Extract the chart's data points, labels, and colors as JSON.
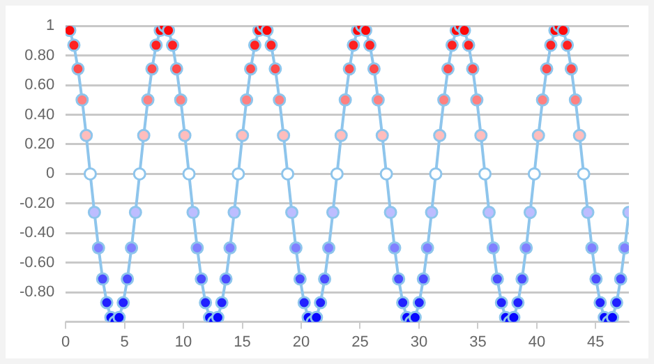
{
  "chart_data": {
    "type": "line",
    "marker": "circle",
    "grid": "y",
    "xlim": [
      0,
      47.82
    ],
    "ylim": [
      -1,
      1
    ],
    "xticks": [
      0,
      5,
      10,
      15,
      20,
      25,
      30,
      35,
      40,
      45
    ],
    "yticks": [
      1,
      {
        "value": 0.8,
        "label": "0.80"
      },
      {
        "value": 0.6,
        "label": "0.60"
      },
      {
        "value": 0.4,
        "label": "0.40"
      },
      {
        "value": 0.2,
        "label": "0.20"
      },
      0,
      {
        "value": -0.2,
        "label": "-0.20"
      },
      {
        "value": -0.4,
        "label": "-0.40"
      },
      {
        "value": -0.6,
        "label": "-0.60"
      },
      {
        "value": -0.8,
        "label": "-0.80"
      },
      {
        "value": -1,
        "label": null
      }
    ],
    "series": [
      {
        "color": "#8ec5ec",
        "x": [
          0,
          0.35,
          0.7,
          1.05,
          1.4,
          1.75,
          2.09,
          2.44,
          2.79,
          3.14,
          3.49,
          3.84,
          4.19,
          4.54,
          4.89,
          5.24,
          5.59,
          5.93,
          6.28,
          6.63,
          6.98,
          7.33,
          7.68,
          8.03,
          8.38,
          8.73,
          9.08,
          9.42,
          9.77,
          10.12,
          10.47,
          10.82,
          11.17,
          11.52,
          11.87,
          12.22,
          12.57,
          12.92,
          13.26,
          13.61,
          13.96,
          14.31,
          14.66,
          15.01,
          15.36,
          15.71,
          16.06,
          16.41,
          16.76,
          17.1,
          17.45,
          17.8,
          18.15,
          18.5,
          18.85,
          19.2,
          19.55,
          19.9,
          20.25,
          20.59,
          20.94,
          21.29,
          21.64,
          21.99,
          22.34,
          22.69,
          23.04,
          23.39,
          23.74,
          24.09,
          24.43,
          24.78,
          25.13,
          25.48,
          25.83,
          26.18,
          26.53,
          26.88,
          27.23,
          27.58,
          27.93,
          28.27,
          28.62,
          28.97,
          29.32,
          29.67,
          30.02,
          30.37,
          30.72,
          31.07,
          31.42,
          31.76,
          32.11,
          32.46,
          32.81,
          33.16,
          33.51,
          33.86,
          34.21,
          34.56,
          34.91,
          35.26,
          35.6,
          35.95,
          36.3,
          36.65,
          37.0,
          37.35,
          37.7,
          38.05,
          38.4,
          38.75,
          39.1,
          39.44,
          39.79,
          40.14,
          40.49,
          40.84,
          41.19,
          41.54,
          41.89,
          42.24,
          42.59,
          42.93,
          43.28,
          43.63,
          43.98,
          44.33,
          44.68,
          45.03,
          45.38,
          45.73,
          46.08,
          46.43,
          46.78,
          47.12,
          47.47,
          47.82
        ],
        "values": [
          1,
          0.97,
          0.87,
          0.71,
          0.5,
          0.26,
          0,
          -0.26,
          -0.5,
          -0.71,
          -0.87,
          -0.97,
          -1,
          -0.97,
          -0.87,
          -0.71,
          -0.5,
          -0.26,
          0,
          0.26,
          0.5,
          0.71,
          0.87,
          0.97,
          1,
          0.97,
          0.87,
          0.71,
          0.5,
          0.26,
          0,
          -0.26,
          -0.5,
          -0.71,
          -0.87,
          -0.97,
          -1,
          -0.97,
          -0.87,
          -0.71,
          -0.5,
          -0.26,
          0,
          0.26,
          0.5,
          0.71,
          0.87,
          0.97,
          1,
          0.97,
          0.87,
          0.71,
          0.5,
          0.26,
          0,
          -0.26,
          -0.5,
          -0.71,
          -0.87,
          -0.97,
          -1,
          -0.97,
          -0.87,
          -0.71,
          -0.5,
          -0.26,
          0,
          0.26,
          0.5,
          0.71,
          0.87,
          0.97,
          1,
          0.97,
          0.87,
          0.71,
          0.5,
          0.26,
          0,
          -0.26,
          -0.5,
          -0.71,
          -0.87,
          -0.97,
          -1,
          -0.97,
          -0.87,
          -0.71,
          -0.5,
          -0.26,
          0,
          0.26,
          0.5,
          0.71,
          0.87,
          0.97,
          1,
          0.97,
          0.87,
          0.71,
          0.5,
          0.26,
          0,
          -0.26,
          -0.5,
          -0.71,
          -0.87,
          -0.97,
          -1,
          -0.97,
          -0.87,
          -0.71,
          -0.5,
          -0.26,
          0,
          0.26,
          0.5,
          0.71,
          0.87,
          0.97,
          1,
          0.97,
          0.87,
          0.71,
          0.5,
          0.26,
          0,
          -0.26,
          -0.5,
          -0.71,
          -0.87,
          -0.97,
          -1,
          -0.97,
          -0.87,
          -0.71,
          -0.5,
          -0.26
        ],
        "colors": [
          "#ff0000",
          "#ff0808",
          "#ff2121",
          "#ff4a4a",
          "#ff8080",
          "#ffbdbd",
          "#ffffff",
          "#bdbdff",
          "#8080ff",
          "#4a4aff",
          "#2121ff",
          "#0808ff",
          "#0000ff",
          "#0808ff",
          "#2121ff",
          "#4a4aff",
          "#8080ff",
          "#bdbdff",
          "#ffffff",
          "#ffbdbd",
          "#ff8080",
          "#ff4a4a",
          "#ff2121",
          "#ff0808",
          "#ff0000",
          "#ff0808",
          "#ff2121",
          "#ff4a4a",
          "#ff8080",
          "#ffbdbd",
          "#ffffff",
          "#bdbdff",
          "#8080ff",
          "#4a4aff",
          "#2121ff",
          "#0808ff",
          "#0000ff",
          "#0808ff",
          "#2121ff",
          "#4a4aff",
          "#8080ff",
          "#bdbdff",
          "#ffffff",
          "#ffbdbd",
          "#ff8080",
          "#ff4a4a",
          "#ff2121",
          "#ff0808",
          "#ff0000",
          "#ff0808",
          "#ff2121",
          "#ff4a4a",
          "#ff8080",
          "#ffbdbd",
          "#ffffff",
          "#bdbdff",
          "#8080ff",
          "#4a4aff",
          "#2121ff",
          "#0808ff",
          "#0000ff",
          "#0808ff",
          "#2121ff",
          "#4a4aff",
          "#8080ff",
          "#bdbdff",
          "#ffffff",
          "#ffbdbd",
          "#ff8080",
          "#ff4a4a",
          "#ff2121",
          "#ff0808",
          "#ff0000",
          "#ff0808",
          "#ff2121",
          "#ff4a4a",
          "#ff8080",
          "#ffbdbd",
          "#ffffff",
          "#bdbdff",
          "#8080ff",
          "#4a4aff",
          "#2121ff",
          "#0808ff",
          "#0000ff",
          "#0808ff",
          "#2121ff",
          "#4a4aff",
          "#8080ff",
          "#bdbdff",
          "#ffffff",
          "#ffbdbd",
          "#ff8080",
          "#ff4a4a",
          "#ff2121",
          "#ff0808",
          "#ff0000",
          "#ff0808",
          "#ff2121",
          "#ff4a4a",
          "#ff8080",
          "#ffbdbd",
          "#ffffff",
          "#bdbdff",
          "#8080ff",
          "#4a4aff",
          "#2121ff",
          "#0808ff",
          "#0000ff",
          "#0808ff",
          "#2121ff",
          "#4a4aff",
          "#8080ff",
          "#bdbdff",
          "#ffffff",
          "#ffbdbd",
          "#ff8080",
          "#ff4a4a",
          "#ff2121",
          "#ff0808",
          "#ff0000",
          "#ff0808",
          "#ff2121",
          "#ff4a4a",
          "#ff8080",
          "#ffbdbd",
          "#ffffff",
          "#bdbdff",
          "#8080ff",
          "#4a4aff",
          "#2121ff",
          "#0808ff",
          "#0000ff",
          "#0808ff",
          "#2121ff",
          "#4a4aff",
          "#8080ff",
          "#bdbdff"
        ]
      }
    ]
  }
}
